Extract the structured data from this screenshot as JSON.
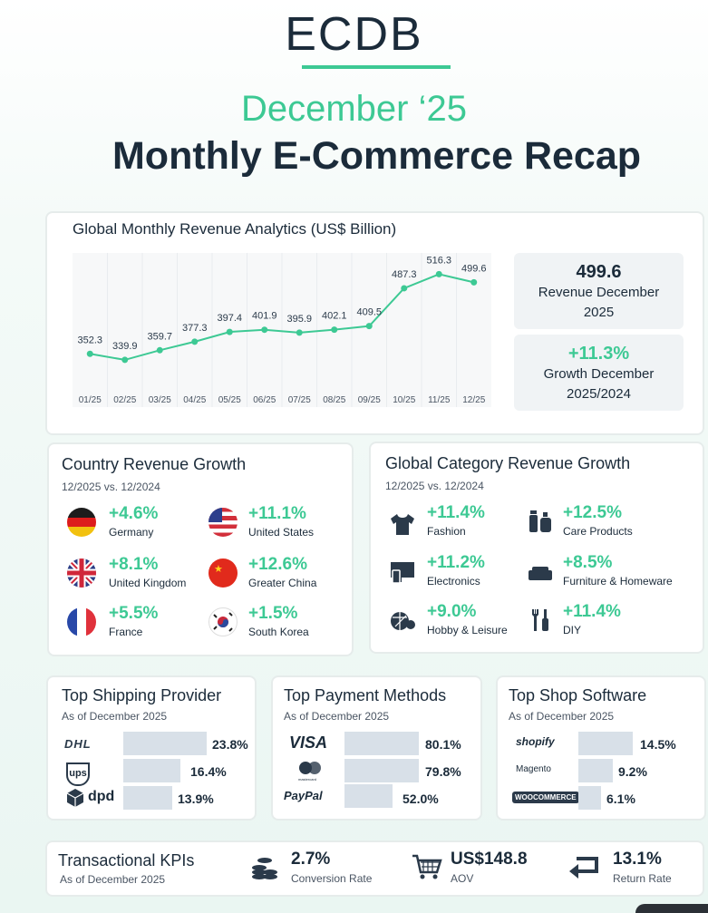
{
  "header": {
    "logo": "ECDB",
    "month": "December ‘25",
    "title": "Monthly E-Commerce Recap"
  },
  "colors": {
    "accent": "#3dc994",
    "dark": "#1b2b3a",
    "bar": "#d8e0e8"
  },
  "revenue": {
    "title": "Global Monthly Revenue Analytics (US$ Billion)",
    "kpi1": {
      "value": "499.6",
      "label_line1": "Revenue December",
      "label_line2": "2025"
    },
    "kpi2": {
      "value": "+11.3%",
      "label_line1": "Growth December",
      "label_line2": "2025/2024"
    }
  },
  "chart_data": {
    "type": "line",
    "title": "Global Monthly Revenue Analytics (US$ Billion)",
    "categories": [
      "01/25",
      "02/25",
      "03/25",
      "04/25",
      "05/25",
      "06/25",
      "07/25",
      "08/25",
      "09/25",
      "10/25",
      "11/25",
      "12/25"
    ],
    "series": [
      {
        "values": [
          352.3,
          339.9,
          359.7,
          377.3,
          397.4,
          401.9,
          395.9,
          402.1,
          409.5,
          487.3,
          516.3,
          499.6
        ]
      }
    ],
    "ylim": [
      280,
      560
    ],
    "grid": true,
    "color": "#3dc994"
  },
  "country": {
    "title": "Country Revenue Growth",
    "subtitle": "12/2025 vs. 12/2024",
    "items": [
      {
        "value": "+4.6%",
        "label": "Germany",
        "flag": "germany-flag"
      },
      {
        "value": "+11.1%",
        "label": "United States",
        "flag": "us-flag"
      },
      {
        "value": "+8.1%",
        "label": "United Kingdom",
        "flag": "uk-flag"
      },
      {
        "value": "+12.6%",
        "label": "Greater China",
        "flag": "china-flag"
      },
      {
        "value": "+5.5%",
        "label": "France",
        "flag": "france-flag"
      },
      {
        "value": "+1.5%",
        "label": "South Korea",
        "flag": "korea-flag"
      }
    ]
  },
  "category": {
    "title": "Global Category Revenue Growth",
    "subtitle": "12/2025 vs. 12/2024",
    "items": [
      {
        "value": "+11.4%",
        "label": "Fashion",
        "icon": "shirt-icon"
      },
      {
        "value": "+12.5%",
        "label": "Care Products",
        "icon": "bottles-icon"
      },
      {
        "value": "+11.2%",
        "label": "Electronics",
        "icon": "monitor-icon"
      },
      {
        "value": "+8.5%",
        "label": "Furniture & Homeware",
        "icon": "sofa-icon"
      },
      {
        "value": "+9.0%",
        "label": "Hobby & Leisure",
        "icon": "ball-icon"
      },
      {
        "value": "+11.4%",
        "label": "DIY",
        "icon": "tools-icon"
      }
    ]
  },
  "shipping": {
    "title": "Top Shipping Provider",
    "subtitle": "As of December 2025",
    "rows": [
      {
        "brand": "DHL",
        "pct": "23.8%",
        "share": 23.8
      },
      {
        "brand": "ups",
        "pct": "16.4%",
        "share": 16.4
      },
      {
        "brand": "dpd",
        "pct": "13.9%",
        "share": 13.9
      }
    ]
  },
  "payment": {
    "title": "Top Payment Methods",
    "subtitle": "As of December 2025",
    "rows": [
      {
        "brand": "VISA",
        "pct": "80.1%",
        "share": 80.1
      },
      {
        "brand": "mastercard",
        "pct": "79.8%",
        "share": 79.8
      },
      {
        "brand": "PayPal",
        "pct": "52.0%",
        "share": 52.0
      }
    ]
  },
  "software": {
    "title": "Top Shop Software",
    "subtitle": "As of December 2025",
    "rows": [
      {
        "brand": "shopify",
        "pct": "14.5%",
        "share": 14.5
      },
      {
        "brand": "Magento",
        "pct": "9.2%",
        "share": 9.2
      },
      {
        "brand": "WOOCOMMERCE",
        "pct": "6.1%",
        "share": 6.1
      }
    ]
  },
  "kpis": {
    "title": "Transactional KPIs",
    "subtitle": "As of December 2025",
    "items": [
      {
        "value": "2.7%",
        "label": "Conversion Rate",
        "icon": "coins-icon"
      },
      {
        "value": "US$148.8",
        "label": "AOV",
        "icon": "cart-icon"
      },
      {
        "value": "13.1%",
        "label": "Return Rate",
        "icon": "return-arrow-icon"
      }
    ]
  }
}
